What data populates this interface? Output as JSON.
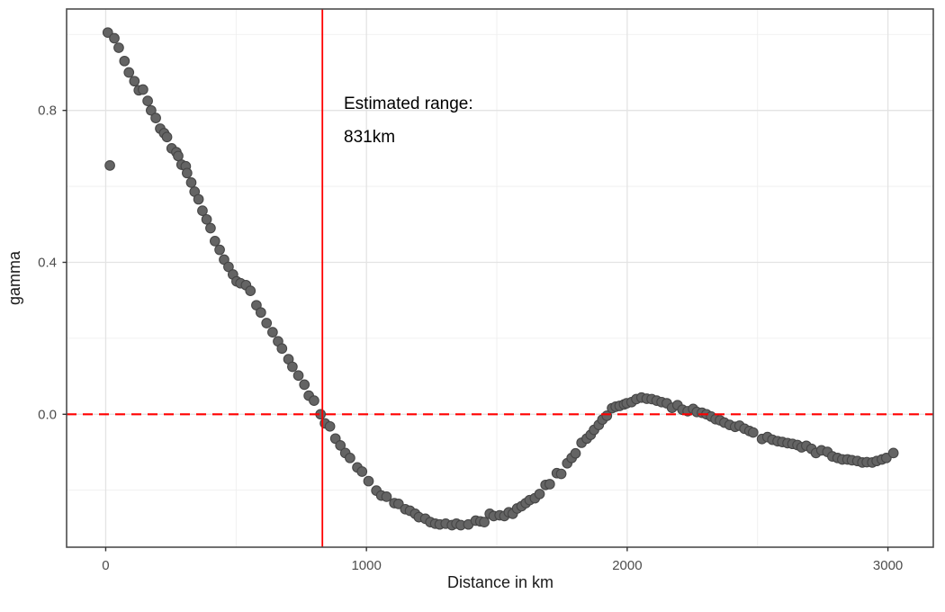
{
  "figure": {
    "background": "#FFFFFF",
    "panel_border_color": "#4D4D4D",
    "grid_major_color": "#E3E3E3",
    "grid_minor_color": "#EDEDED",
    "tick_color": "#333333",
    "tick_label_color": "#4D4D4D"
  },
  "annotation": {
    "line1": "Estimated range:",
    "line2": "831km"
  },
  "chart_data": {
    "type": "scatter",
    "title": "",
    "xlabel": "Distance in km",
    "ylabel": "gamma",
    "xlim": [
      -150,
      3174
    ],
    "ylim": [
      -0.35,
      1.067
    ],
    "grid": true,
    "x_ticks": {
      "values": [
        0,
        1000,
        2000,
        3000
      ],
      "labels": [
        "0",
        "1000",
        "2000",
        "3000"
      ]
    },
    "x_minor_ticks": [
      500,
      1500,
      2500
    ],
    "y_ticks": {
      "values": [
        0.0,
        0.4,
        0.8
      ],
      "labels": [
        "0.0",
        "0.4",
        "0.8"
      ]
    },
    "y_minor_ticks": [
      -0.2,
      0.2,
      0.6,
      1.0
    ],
    "point_style": {
      "fill": "#646464",
      "stroke": "#464646",
      "radius": 5.3,
      "stroke_width": 1.1
    },
    "reference_lines": {
      "vline": {
        "x": 831,
        "color": "#FF0000",
        "style": "solid",
        "width": 1.8
      },
      "hline": {
        "y": 0,
        "color": "#FF0000",
        "style": "dashed",
        "width": 2.2,
        "dash": "11 7"
      }
    },
    "estimated_range_km": 831,
    "points": [
      [
        8,
        1.005
      ],
      [
        16,
        0.655
      ],
      [
        33,
        0.99
      ],
      [
        50,
        0.965
      ],
      [
        72,
        0.93
      ],
      [
        89,
        0.9
      ],
      [
        110,
        0.877
      ],
      [
        127,
        0.853
      ],
      [
        143,
        0.855
      ],
      [
        161,
        0.825
      ],
      [
        174,
        0.8
      ],
      [
        192,
        0.78
      ],
      [
        209,
        0.752
      ],
      [
        224,
        0.74
      ],
      [
        235,
        0.73
      ],
      [
        253,
        0.7
      ],
      [
        271,
        0.69
      ],
      [
        278,
        0.68
      ],
      [
        291,
        0.657
      ],
      [
        307,
        0.653
      ],
      [
        312,
        0.635
      ],
      [
        328,
        0.61
      ],
      [
        341,
        0.586
      ],
      [
        356,
        0.566
      ],
      [
        371,
        0.536
      ],
      [
        387,
        0.513
      ],
      [
        402,
        0.49
      ],
      [
        419,
        0.456
      ],
      [
        437,
        0.433
      ],
      [
        454,
        0.407
      ],
      [
        471,
        0.388
      ],
      [
        488,
        0.368
      ],
      [
        502,
        0.35
      ],
      [
        517,
        0.345
      ],
      [
        538,
        0.34
      ],
      [
        555,
        0.325
      ],
      [
        578,
        0.287
      ],
      [
        595,
        0.268
      ],
      [
        617,
        0.24
      ],
      [
        640,
        0.216
      ],
      [
        661,
        0.192
      ],
      [
        676,
        0.173
      ],
      [
        701,
        0.145
      ],
      [
        716,
        0.125
      ],
      [
        739,
        0.102
      ],
      [
        762,
        0.078
      ],
      [
        779,
        0.049
      ],
      [
        799,
        0.036
      ],
      [
        824,
        0.0
      ],
      [
        841,
        -0.024
      ],
      [
        860,
        -0.032
      ],
      [
        881,
        -0.064
      ],
      [
        900,
        -0.082
      ],
      [
        919,
        -0.102
      ],
      [
        937,
        -0.115
      ],
      [
        965,
        -0.14
      ],
      [
        983,
        -0.151
      ],
      [
        1008,
        -0.176
      ],
      [
        1038,
        -0.201
      ],
      [
        1057,
        -0.214
      ],
      [
        1077,
        -0.217
      ],
      [
        1107,
        -0.234
      ],
      [
        1123,
        -0.236
      ],
      [
        1149,
        -0.25
      ],
      [
        1167,
        -0.254
      ],
      [
        1187,
        -0.262
      ],
      [
        1201,
        -0.271
      ],
      [
        1226,
        -0.275
      ],
      [
        1245,
        -0.284
      ],
      [
        1264,
        -0.288
      ],
      [
        1281,
        -0.29
      ],
      [
        1304,
        -0.288
      ],
      [
        1328,
        -0.292
      ],
      [
        1345,
        -0.288
      ],
      [
        1362,
        -0.292
      ],
      [
        1391,
        -0.29
      ],
      [
        1419,
        -0.28
      ],
      [
        1437,
        -0.282
      ],
      [
        1452,
        -0.284
      ],
      [
        1473,
        -0.262
      ],
      [
        1488,
        -0.268
      ],
      [
        1511,
        -0.266
      ],
      [
        1529,
        -0.268
      ],
      [
        1546,
        -0.258
      ],
      [
        1561,
        -0.262
      ],
      [
        1578,
        -0.248
      ],
      [
        1595,
        -0.242
      ],
      [
        1611,
        -0.234
      ],
      [
        1626,
        -0.226
      ],
      [
        1646,
        -0.221
      ],
      [
        1664,
        -0.21
      ],
      [
        1687,
        -0.186
      ],
      [
        1703,
        -0.184
      ],
      [
        1730,
        -0.155
      ],
      [
        1747,
        -0.157
      ],
      [
        1770,
        -0.129
      ],
      [
        1787,
        -0.115
      ],
      [
        1802,
        -0.103
      ],
      [
        1825,
        -0.075
      ],
      [
        1845,
        -0.064
      ],
      [
        1860,
        -0.054
      ],
      [
        1873,
        -0.041
      ],
      [
        1891,
        -0.028
      ],
      [
        1905,
        -0.014
      ],
      [
        1922,
        -0.004
      ],
      [
        1942,
        0.016
      ],
      [
        1956,
        0.02
      ],
      [
        1971,
        0.022
      ],
      [
        1988,
        0.026
      ],
      [
        1998,
        0.029
      ],
      [
        2017,
        0.032
      ],
      [
        2035,
        0.04
      ],
      [
        2055,
        0.044
      ],
      [
        2075,
        0.041
      ],
      [
        2094,
        0.04
      ],
      [
        2113,
        0.036
      ],
      [
        2132,
        0.032
      ],
      [
        2152,
        0.029
      ],
      [
        2172,
        0.017
      ],
      [
        2193,
        0.024
      ],
      [
        2212,
        0.012
      ],
      [
        2232,
        0.008
      ],
      [
        2253,
        0.014
      ],
      [
        2267,
        0.006
      ],
      [
        2287,
        0.004
      ],
      [
        2304,
        0.0
      ],
      [
        2322,
        -0.006
      ],
      [
        2339,
        -0.013
      ],
      [
        2356,
        -0.016
      ],
      [
        2373,
        -0.022
      ],
      [
        2393,
        -0.028
      ],
      [
        2414,
        -0.033
      ],
      [
        2431,
        -0.03
      ],
      [
        2450,
        -0.038
      ],
      [
        2469,
        -0.044
      ],
      [
        2483,
        -0.048
      ],
      [
        2517,
        -0.065
      ],
      [
        2538,
        -0.06
      ],
      [
        2557,
        -0.067
      ],
      [
        2577,
        -0.071
      ],
      [
        2595,
        -0.073
      ],
      [
        2615,
        -0.076
      ],
      [
        2634,
        -0.078
      ],
      [
        2653,
        -0.081
      ],
      [
        2669,
        -0.087
      ],
      [
        2687,
        -0.083
      ],
      [
        2707,
        -0.091
      ],
      [
        2724,
        -0.102
      ],
      [
        2745,
        -0.095
      ],
      [
        2768,
        -0.099
      ],
      [
        2787,
        -0.111
      ],
      [
        2807,
        -0.115
      ],
      [
        2825,
        -0.119
      ],
      [
        2845,
        -0.119
      ],
      [
        2862,
        -0.121
      ],
      [
        2883,
        -0.123
      ],
      [
        2902,
        -0.127
      ],
      [
        2919,
        -0.126
      ],
      [
        2940,
        -0.127
      ],
      [
        2957,
        -0.123
      ],
      [
        2977,
        -0.119
      ],
      [
        2994,
        -0.115
      ],
      [
        3021,
        -0.102
      ]
    ]
  }
}
